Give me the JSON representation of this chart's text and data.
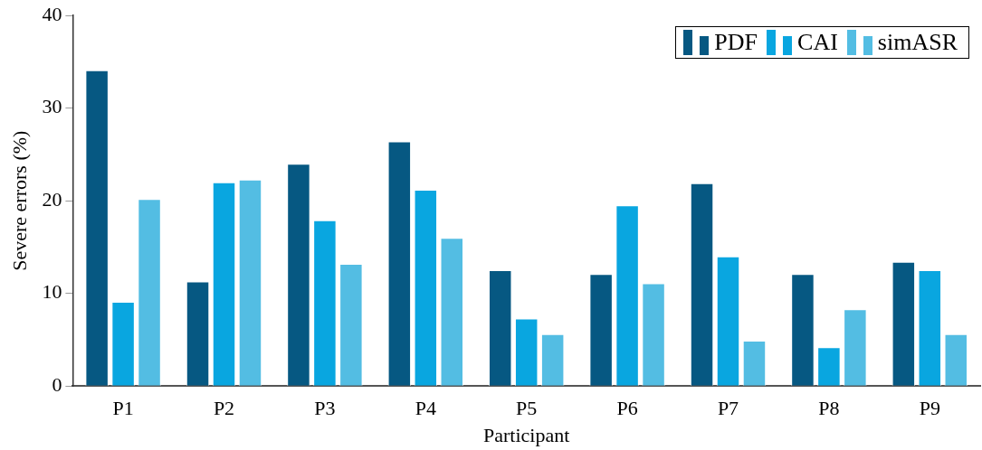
{
  "chart_data": {
    "type": "bar",
    "xlabel": "Participant",
    "ylabel": "Severe errors (%)",
    "categories": [
      "P1",
      "P2",
      "P3",
      "P4",
      "P5",
      "P6",
      "P7",
      "P8",
      "P9"
    ],
    "series": [
      {
        "name": "PDF",
        "color": "#065882",
        "values": [
          34.1,
          11.3,
          24.0,
          26.4,
          12.5,
          12.1,
          21.9,
          12.1,
          13.4
        ]
      },
      {
        "name": "CAI",
        "color": "#09a6e0",
        "values": [
          9.1,
          22.0,
          17.9,
          21.2,
          7.3,
          19.5,
          14.0,
          4.2,
          12.5
        ]
      },
      {
        "name": "simASR",
        "color": "#53bde3",
        "values": [
          20.2,
          22.3,
          13.2,
          16.0,
          5.6,
          11.1,
          4.9,
          8.3,
          5.6
        ]
      }
    ],
    "ylim": [
      0,
      40
    ],
    "yticks": [
      0,
      10,
      20,
      30,
      40
    ],
    "grid": false,
    "legend": "top right"
  }
}
